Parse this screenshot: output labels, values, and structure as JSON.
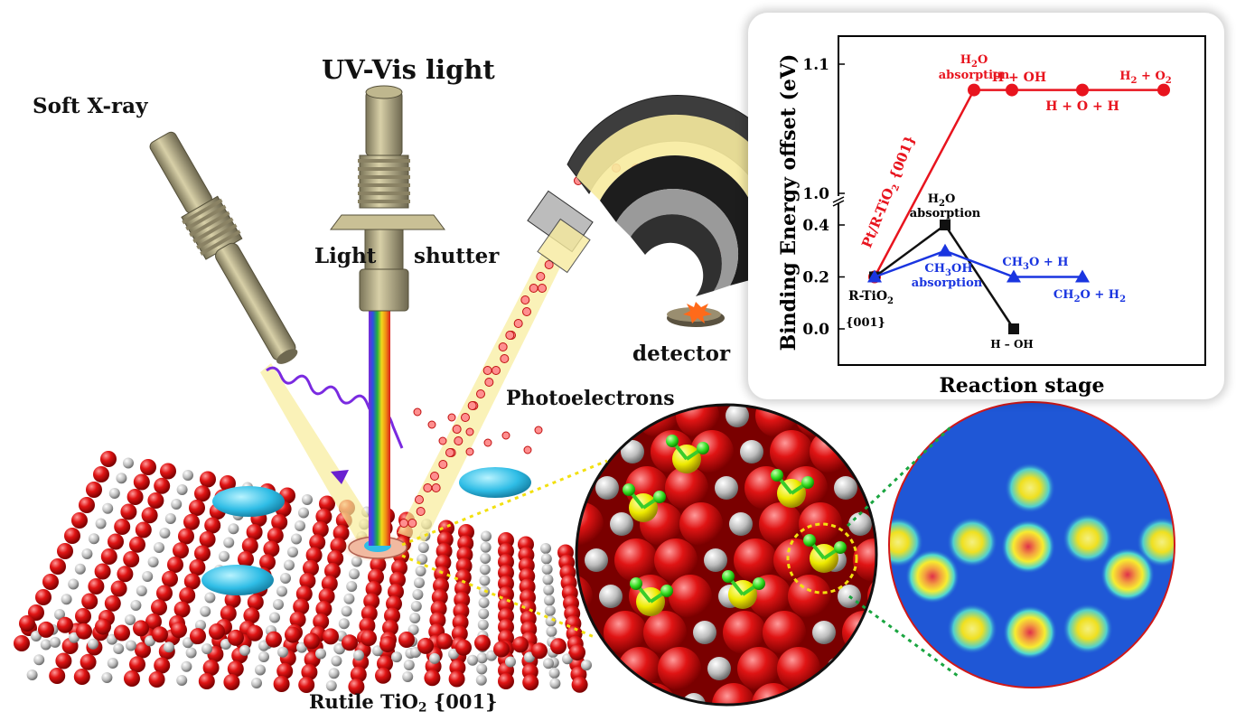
{
  "labels": {
    "soft_xray": "Soft X-ray",
    "uv_vis": "UV-Vis light",
    "light": "Light",
    "shutter": "shutter",
    "detector": "detector",
    "photoelectrons": "Photoelectrons",
    "rutile_main": "Rutile TiO",
    "rutile_sub": "2",
    "rutile_facet": " {001}"
  },
  "colors": {
    "oxygen": "#dd1111",
    "titanium": "#c8c8c8",
    "adsorbate": "#27b6e8",
    "hydrogen": "#33dd22",
    "metal": "#e8e000",
    "beam": "#f7e58a",
    "map_bg": "#1f57d6",
    "series_pt": "#e8141e",
    "series_h2o": "#111111",
    "series_ch3oh": "#1a35e0"
  },
  "chart": {
    "ylabel": "Binding Energy offset (eV)",
    "xlabel": "Reaction stage",
    "yticks": [
      "0.0",
      "0.2",
      "0.4",
      "1.0",
      "1.1"
    ],
    "annotations": {
      "pt_series_label": "Pt/R-TiO",
      "pt_series_sub": "2",
      "pt_series_facet": " {001}",
      "h2o_abs_top": "H",
      "h2o_abs_sub": "2",
      "h2o_abs_o": "O",
      "absorption": "absorption",
      "h_oh": "H + OH",
      "h_o_h": "H + O + H",
      "h2_o2": "H",
      "r_tio2": "R-TiO",
      "r_tio2_sub": "2",
      "facet": "{001}",
      "h2o_black_abs": "absorption",
      "h_minus_oh": "H – OH",
      "ch3oh_abs": "absorption",
      "ch3o_h": "CH",
      "ch2o_h2": "CH"
    }
  },
  "chart_data": {
    "type": "line",
    "xlabel": "Reaction stage",
    "ylabel": "Binding Energy offset (eV)",
    "y_axis_break": [
      0.45,
      1.0
    ],
    "yticks": [
      0.0,
      0.2,
      0.4,
      1.0,
      1.1
    ],
    "series": [
      {
        "name": "Pt/R-TiO2 {001}",
        "color": "#e8141e",
        "marker": "circle",
        "x": [
          0,
          1,
          2,
          3,
          4
        ],
        "y": [
          0.2,
          1.08,
          1.08,
          1.08,
          1.08
        ],
        "point_labels": [
          "",
          "H2O absorption",
          "H + OH",
          "H + O + H",
          "H2 + O2"
        ]
      },
      {
        "name": "",
        "color": "#111111",
        "marker": "square",
        "x": [
          0,
          1,
          2
        ],
        "y": [
          0.2,
          0.4,
          0.0
        ],
        "point_labels": [
          "R-TiO2 {001}",
          "H2O absorption",
          "H – OH"
        ]
      },
      {
        "name": "",
        "color": "#1a35e0",
        "marker": "triangle",
        "x": [
          0,
          1,
          2,
          3
        ],
        "y": [
          0.2,
          0.3,
          0.2,
          0.2
        ],
        "point_labels": [
          "",
          "CH3OH absorption",
          "CH3O + H",
          "CH2O + H2"
        ]
      }
    ]
  }
}
